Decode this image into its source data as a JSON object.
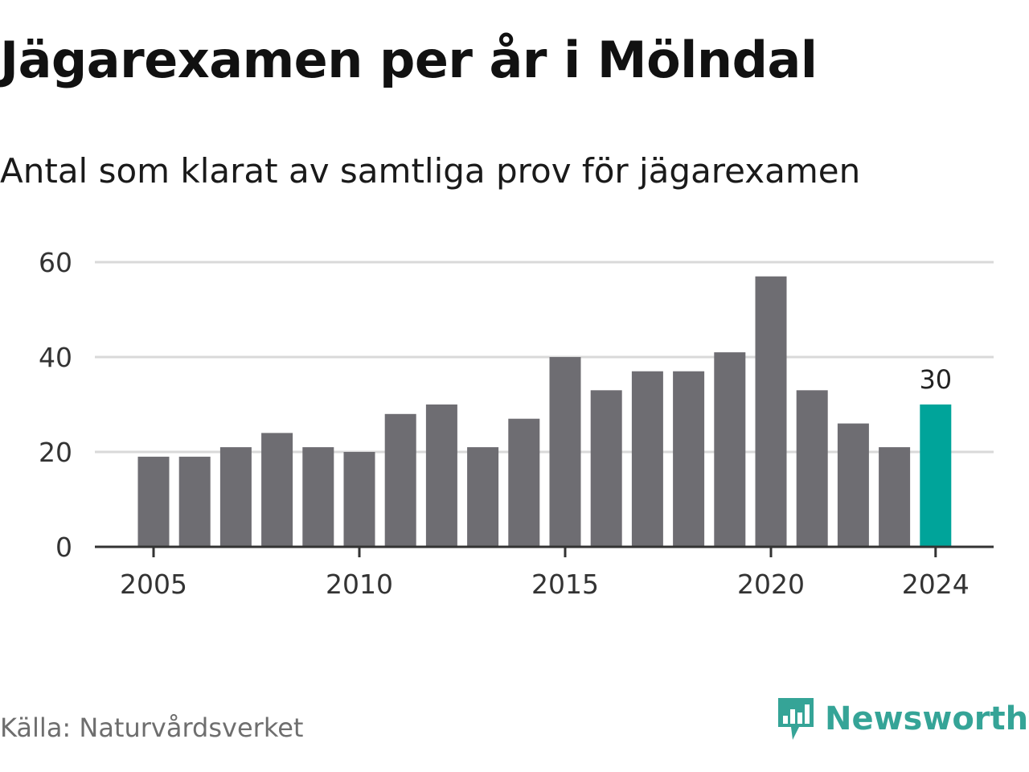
{
  "chart_data": {
    "type": "bar",
    "title": "Jägarexamen per år i Mölndal",
    "subtitle": "Antal som klarat av samtliga prov för jägarexamen",
    "categories": [
      2005,
      2006,
      2007,
      2008,
      2009,
      2010,
      2011,
      2012,
      2013,
      2014,
      2015,
      2016,
      2017,
      2018,
      2019,
      2020,
      2021,
      2022,
      2023,
      2024
    ],
    "values": [
      19,
      19,
      21,
      24,
      21,
      20,
      28,
      30,
      21,
      27,
      40,
      33,
      37,
      37,
      41,
      57,
      33,
      26,
      21,
      30
    ],
    "x_tick_labels": [
      "2005",
      "2010",
      "2015",
      "2020",
      "2024"
    ],
    "y_ticks": [
      0,
      20,
      40,
      60
    ],
    "ylim": [
      0,
      60
    ],
    "highlight": {
      "category": 2024,
      "label": "30"
    },
    "grid": true,
    "colors": {
      "bar": "#6e6d72",
      "highlight": "#00a49a",
      "grid": "#d9d9d9",
      "axis": "#333333"
    }
  },
  "footer": {
    "source": "Källa: Naturvårdsverket",
    "brand": "Newsworthy",
    "brand_icon": "newsworthy-logo-icon",
    "brand_color": "#35a497"
  }
}
